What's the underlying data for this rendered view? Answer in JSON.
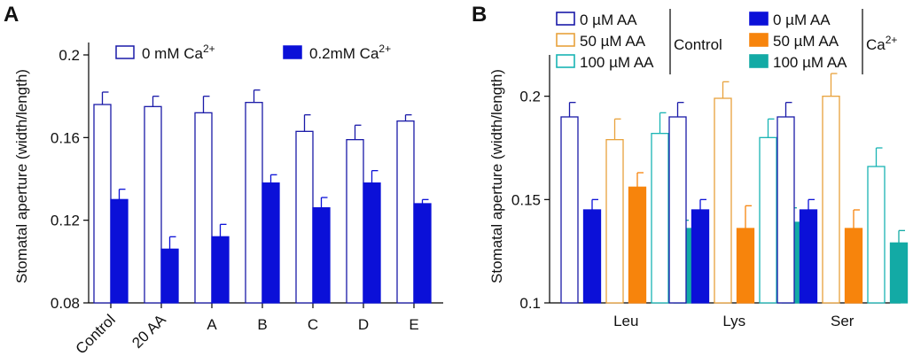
{
  "chart_data": [
    {
      "panel": "A",
      "type": "bar",
      "ylabel": "Stomatal aperture (width/length)",
      "ylim": [
        0.08,
        0.2
      ],
      "yticks": [
        "0.08",
        "0.12",
        "0.16",
        "0.2"
      ],
      "ytick_values": [
        0.08,
        0.12,
        0.16,
        0.2
      ],
      "categories": [
        "Control",
        "20 AA",
        "A",
        "B",
        "C",
        "D",
        "E"
      ],
      "legend_placement": "top",
      "series": [
        {
          "name_main": "0 mM Ca",
          "name_sup": "2+",
          "fill": "#ffffff",
          "stroke": "#1a1aa8",
          "values": [
            0.176,
            0.175,
            0.172,
            0.177,
            0.163,
            0.159,
            0.168
          ],
          "errors": [
            0.006,
            0.005,
            0.008,
            0.006,
            0.008,
            0.007,
            0.003
          ]
        },
        {
          "name_main": "0.2mM Ca",
          "name_sup": "2+",
          "fill": "#0b10d8",
          "stroke": "#0b10d8",
          "values": [
            0.13,
            0.106,
            0.112,
            0.138,
            0.126,
            0.138,
            0.128
          ],
          "errors": [
            0.005,
            0.006,
            0.006,
            0.004,
            0.005,
            0.006,
            0.002
          ]
        }
      ]
    },
    {
      "panel": "B",
      "type": "bar",
      "ylabel": "Stomatal aperture (width/length)",
      "ylim": [
        0.1,
        0.22
      ],
      "yticks": [
        "0.1",
        "0.15",
        "0.2"
      ],
      "ytick_values": [
        0.1,
        0.15,
        0.2
      ],
      "categories": [
        "Leu",
        "Lys",
        "Ser"
      ],
      "legend_placement": "top",
      "legend_groups": [
        {
          "label": "Control",
          "entries": [
            {
              "name": "0 µM AA",
              "fill": "#ffffff",
              "stroke": "#1a1aa8"
            },
            {
              "name": "50 µM AA",
              "fill": "#ffffff",
              "stroke": "#e8a23c"
            },
            {
              "name": "100 µM AA",
              "fill": "#ffffff",
              "stroke": "#19b4b4"
            }
          ]
        },
        {
          "label_main": "Ca",
          "label_sup": "2+",
          "entries": [
            {
              "name": "0 µM AA",
              "fill": "#0b10d8",
              "stroke": "#0b10d8"
            },
            {
              "name": "50 µM AA",
              "fill": "#f7840c",
              "stroke": "#f7840c"
            },
            {
              "name": "100 µM AA",
              "fill": "#13aaa5",
              "stroke": "#13aaa5"
            }
          ]
        }
      ],
      "series": [
        {
          "name": "Control 0 µM AA",
          "fill": "#ffffff",
          "stroke": "#1a1aa8",
          "values": [
            0.19,
            0.19,
            0.19
          ],
          "errors": [
            0.007,
            0.007,
            0.007
          ]
        },
        {
          "name": "Ca 0 µM AA",
          "fill": "#0b10d8",
          "stroke": "#0b10d8",
          "values": [
            0.145,
            0.145,
            0.145
          ],
          "errors": [
            0.005,
            0.005,
            0.005
          ]
        },
        {
          "name": "Control 50 µM AA",
          "fill": "#ffffff",
          "stroke": "#e8a23c",
          "values": [
            0.179,
            0.199,
            0.2
          ],
          "errors": [
            0.01,
            0.008,
            0.011
          ]
        },
        {
          "name": "Ca 50 µM AA",
          "fill": "#f7840c",
          "stroke": "#f7840c",
          "values": [
            0.156,
            0.136,
            0.136
          ],
          "errors": [
            0.007,
            0.011,
            0.009
          ]
        },
        {
          "name": "Control 100 µM AA",
          "fill": "#ffffff",
          "stroke": "#19b4b4",
          "values": [
            0.182,
            0.18,
            0.166
          ],
          "errors": [
            0.01,
            0.009,
            0.009
          ]
        },
        {
          "name": "Ca 100 µM AA",
          "fill": "#13aaa5",
          "stroke": "#13aaa5",
          "values": [
            0.136,
            0.139,
            0.129
          ],
          "errors": [
            0.004,
            0.007,
            0.006
          ]
        }
      ]
    }
  ]
}
